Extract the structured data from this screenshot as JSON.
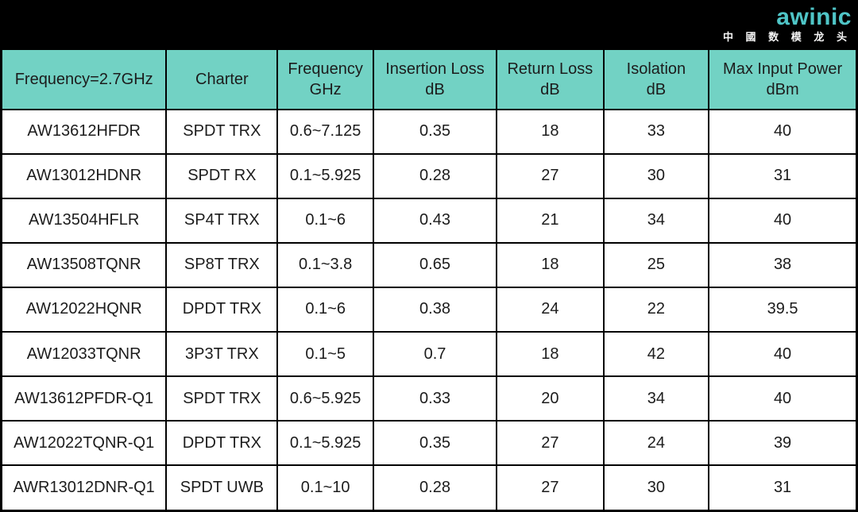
{
  "brand": {
    "logo": "awinic",
    "tagline": "中 國 数 模 龙 头"
  },
  "colors": {
    "banner_bg": "#000000",
    "header_bg": "#72D2C4",
    "logo_teal": "#4FC5C7",
    "tagline_text": "#F5F5F5",
    "border": "#000000",
    "cell_bg": "#FFFFFF",
    "cell_text": "#1C1C1C"
  },
  "chart_data": {
    "type": "table",
    "title": "",
    "condition_note": "Frequency=2.7GHz",
    "columns": [
      "Frequency=2.7GHz",
      "Charter",
      "Frequency GHz",
      "Insertion Loss dB",
      "Return Loss dB",
      "Isolation dB",
      "Max Input Power dBm"
    ],
    "header_lines": [
      {
        "l1": "Frequency=2.7GHz",
        "l2": ""
      },
      {
        "l1": "Charter",
        "l2": ""
      },
      {
        "l1": "Frequency",
        "l2": "GHz"
      },
      {
        "l1": "Insertion Loss",
        "l2": "dB"
      },
      {
        "l1": "Return Loss",
        "l2": "dB"
      },
      {
        "l1": "Isolation",
        "l2": "dB"
      },
      {
        "l1": "Max Input Power",
        "l2": "dBm"
      }
    ],
    "rows": [
      [
        "AW13612HFDR",
        "SPDT TRX",
        "0.6~7.125",
        "0.35",
        "18",
        "33",
        "40"
      ],
      [
        "AW13012HDNR",
        "SPDT RX",
        "0.1~5.925",
        "0.28",
        "27",
        "30",
        "31"
      ],
      [
        "AW13504HFLR",
        "SP4T TRX",
        "0.1~6",
        "0.43",
        "21",
        "34",
        "40"
      ],
      [
        "AW13508TQNR",
        "SP8T TRX",
        "0.1~3.8",
        "0.65",
        "18",
        "25",
        "38"
      ],
      [
        "AW12022HQNR",
        "DPDT TRX",
        "0.1~6",
        "0.38",
        "24",
        "22",
        "39.5"
      ],
      [
        "AW12033TQNR",
        "3P3T TRX",
        "0.1~5",
        "0.7",
        "18",
        "42",
        "40"
      ],
      [
        "AW13612PFDR-Q1",
        "SPDT TRX",
        "0.6~5.925",
        "0.33",
        "20",
        "34",
        "40"
      ],
      [
        "AW12022TQNR-Q1",
        "DPDT TRX",
        "0.1~5.925",
        "0.35",
        "27",
        "24",
        "39"
      ],
      [
        "AWR13012DNR-Q1",
        "SPDT UWB",
        "0.1~10",
        "0.28",
        "27",
        "30",
        "31"
      ]
    ]
  }
}
